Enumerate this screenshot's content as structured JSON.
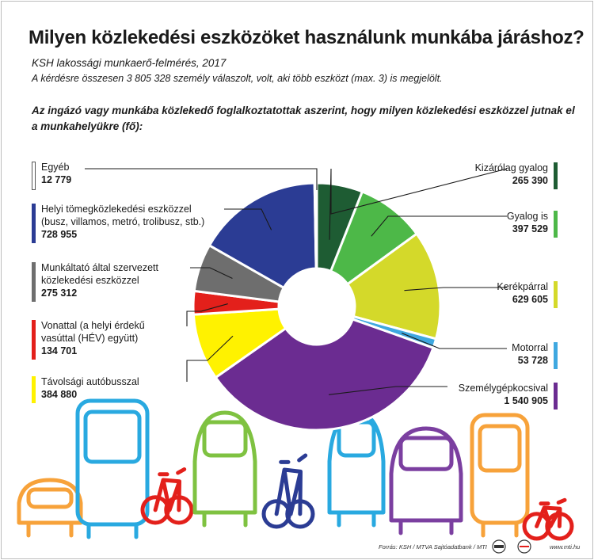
{
  "header": {
    "title": "Milyen közlekedési eszközöket használunk munkába járáshoz?",
    "subtitle": "KSH  lakossági munkaerő-felmérés, 2017",
    "note": "A  kérdésre összesen 3 805 328 személy válaszolt, volt, aki több eszközt (max. 3) is megjelölt.",
    "question": "Az ingázó vagy munkába közlekedő foglalkoztatottak aszerint, hogy milyen közlekedési eszközzel jutnak el a munkahelyükre (fő):"
  },
  "chart_data": {
    "type": "pie",
    "donut": true,
    "categories": [
      "Kizárólag gyalog",
      "Gyalog is",
      "Kerékpárral",
      "Motorral",
      "Személygépkocsival",
      "Távolsági autóbusszal",
      "Vonattal (a helyi érdekű vasúttal (HÉV) együtt)",
      "Munkáltató által szervezett közlekedési eszközzel",
      "Helyi tömegközlekedési eszközzel (busz, villamos, metró, trolibusz, stb.)",
      "Egyéb"
    ],
    "values": [
      265390,
      397529,
      629605,
      53728,
      1540905,
      384880,
      134701,
      275312,
      728955,
      12779
    ],
    "value_labels": [
      "265 390",
      "397 529",
      "629 605",
      "53 728",
      "1 540 905",
      "384 880",
      "134 701",
      "275 312",
      "728 955",
      "12 779"
    ],
    "colors": [
      "#1e5c33",
      "#4db848",
      "#d4d92a",
      "#3fa8e0",
      "#6b2c91",
      "#fff200",
      "#e3201b",
      "#6e6e6e",
      "#2b3c94",
      "#ffffff"
    ],
    "label_lines": [
      [
        "Kizárólag gyalog"
      ],
      [
        "Gyalog is"
      ],
      [
        "Kerékpárral"
      ],
      [
        "Motorral"
      ],
      [
        "Személygépkocsival"
      ],
      [
        "Távolsági autóbusszal"
      ],
      [
        "Vonattal (a helyi érdekű",
        "vasúttal (HÉV) együtt)"
      ],
      [
        "Munkáltató által szervezett",
        "közlekedési eszközzel"
      ],
      [
        "Helyi tömegközlekedési eszközzel",
        "(busz, villamos, metró, trolibusz, stb.)"
      ],
      [
        "Egyéb"
      ]
    ]
  },
  "illustration": {
    "icons": [
      "car-icon",
      "bus-icon",
      "bicycle-icon",
      "car-icon",
      "bicycle-icon",
      "car-icon",
      "car-icon",
      "bus-icon",
      "bicycle-icon"
    ],
    "colors": [
      "#f7a23a",
      "#29a9e0",
      "#e3201b",
      "#7fc241",
      "#2b3c94",
      "#29a9e0",
      "#7b3fa0",
      "#f7a23a",
      "#e3201b"
    ]
  },
  "footer": {
    "source": "Forrás: KSH / MTVA Sajtóadatbank / MTI",
    "website": "www.mti.hu"
  }
}
